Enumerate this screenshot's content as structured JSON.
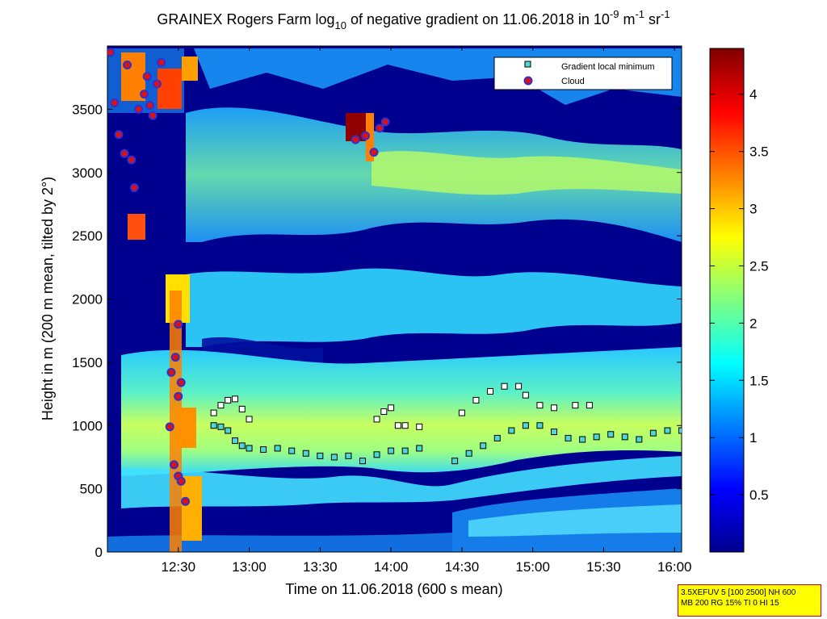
{
  "figure": {
    "title_main": "GRAINEX Rogers Farm log",
    "title_sub": "10",
    "title_rest": " of negative gradient on 11.06.2018 in 10",
    "title_exp1": "-9",
    "title_unit_m": " m",
    "title_exp2": "-1",
    "title_unit_sr": " sr",
    "title_exp3": "-1",
    "xlabel": "Time on 11.06.2018 (600 s mean)",
    "ylabel": "Height in m (200 m mean, tilted by 2°)",
    "info_line1": "3.5XEFUV 5 [100 2500] NH 600",
    "info_line2": "MB 200 RG 15% TI 0 HI 15"
  },
  "chart_data": {
    "type": "heatmap",
    "x_ticks": [
      "12:30",
      "13:00",
      "13:30",
      "14:00",
      "14:30",
      "15:00",
      "15:30",
      "16:00"
    ],
    "x_tick_hours": [
      12.5,
      13.0,
      13.5,
      14.0,
      14.5,
      15.0,
      15.5,
      16.0
    ],
    "xlim_hours": [
      12.0,
      16.05
    ],
    "y_ticks": [
      0,
      500,
      1000,
      1500,
      2000,
      2500,
      3000,
      3500
    ],
    "ylim": [
      0,
      4000
    ],
    "colorbar": {
      "ticks": [
        "0.5",
        "1",
        "1.5",
        "2",
        "2.5",
        "3",
        "3.5",
        "4"
      ],
      "tick_values": [
        0.5,
        1,
        1.5,
        2,
        2.5,
        3,
        3.5,
        4
      ],
      "range": [
        0,
        4.4
      ],
      "colormap": "jet"
    },
    "legend": {
      "position": "top-right",
      "entries": [
        {
          "label": "Gradient local minimum",
          "marker": "square",
          "color": "#4fd6d6"
        },
        {
          "label": "Cloud",
          "marker": "circle",
          "color": "#e01010"
        }
      ]
    },
    "layers_description_values": {
      "low_band_y": [
        200,
        600
      ],
      "mid_band_y": [
        700,
        1500
      ],
      "upper_band_y": [
        1800,
        2300
      ],
      "top_band_y": [
        2700,
        3400
      ]
    },
    "gradient_min_lower": [
      [
        12.75,
        1000
      ],
      [
        12.8,
        990
      ],
      [
        12.85,
        960
      ],
      [
        12.9,
        880
      ],
      [
        12.95,
        840
      ],
      [
        13.0,
        820
      ],
      [
        13.1,
        810
      ],
      [
        13.2,
        820
      ],
      [
        13.3,
        800
      ],
      [
        13.4,
        780
      ],
      [
        13.5,
        760
      ],
      [
        13.6,
        750
      ],
      [
        13.7,
        760
      ],
      [
        13.8,
        720
      ],
      [
        13.9,
        770
      ],
      [
        14.0,
        800
      ],
      [
        14.1,
        800
      ],
      [
        14.2,
        820
      ],
      [
        14.45,
        720
      ],
      [
        14.55,
        780
      ],
      [
        14.65,
        840
      ],
      [
        14.75,
        900
      ],
      [
        14.85,
        960
      ],
      [
        14.95,
        1000
      ],
      [
        15.05,
        1000
      ],
      [
        15.15,
        950
      ],
      [
        15.25,
        900
      ],
      [
        15.35,
        890
      ],
      [
        15.45,
        910
      ],
      [
        15.55,
        930
      ],
      [
        15.65,
        910
      ],
      [
        15.75,
        890
      ],
      [
        15.85,
        940
      ],
      [
        15.95,
        960
      ],
      [
        16.05,
        960
      ]
    ],
    "gradient_min_upper": [
      [
        12.75,
        1100
      ],
      [
        12.8,
        1160
      ],
      [
        12.85,
        1200
      ],
      [
        12.9,
        1210
      ],
      [
        12.95,
        1130
      ],
      [
        13.0,
        1050
      ],
      [
        13.9,
        1050
      ],
      [
        13.95,
        1110
      ],
      [
        14.0,
        1140
      ],
      [
        14.05,
        1000
      ],
      [
        14.1,
        1000
      ],
      [
        14.2,
        990
      ],
      [
        14.5,
        1100
      ],
      [
        14.6,
        1200
      ],
      [
        14.7,
        1270
      ],
      [
        14.8,
        1310
      ],
      [
        14.9,
        1310
      ],
      [
        14.95,
        1240
      ],
      [
        15.05,
        1160
      ],
      [
        15.15,
        1140
      ],
      [
        15.3,
        1160
      ],
      [
        15.4,
        1160
      ]
    ],
    "clouds": [
      [
        12.02,
        3950
      ],
      [
        12.05,
        3550
      ],
      [
        12.08,
        3300
      ],
      [
        12.12,
        3150
      ],
      [
        12.14,
        3850
      ],
      [
        12.17,
        3100
      ],
      [
        12.19,
        2880
      ],
      [
        12.22,
        3500
      ],
      [
        12.26,
        3620
      ],
      [
        12.28,
        3760
      ],
      [
        12.3,
        3530
      ],
      [
        12.32,
        3450
      ],
      [
        12.35,
        3700
      ],
      [
        12.38,
        3870
      ],
      [
        12.45,
        1420
      ],
      [
        12.48,
        1540
      ],
      [
        12.5,
        1230
      ],
      [
        12.52,
        1340
      ],
      [
        12.44,
        990
      ],
      [
        12.47,
        690
      ],
      [
        12.5,
        600
      ],
      [
        12.52,
        560
      ],
      [
        12.55,
        400
      ],
      [
        12.5,
        1800
      ],
      [
        13.75,
        3260
      ],
      [
        13.82,
        3290
      ],
      [
        13.88,
        3160
      ],
      [
        13.92,
        3350
      ],
      [
        13.96,
        3400
      ]
    ]
  }
}
